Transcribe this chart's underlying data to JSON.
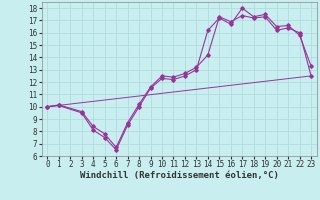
{
  "bg_color": "#c8eef0",
  "grid_color": "#b0dde0",
  "line_color": "#993399",
  "xlim": [
    -0.5,
    23.5
  ],
  "ylim": [
    6,
    18.5
  ],
  "xticks": [
    0,
    1,
    2,
    3,
    4,
    5,
    6,
    7,
    8,
    9,
    10,
    11,
    12,
    13,
    14,
    15,
    16,
    17,
    18,
    19,
    20,
    21,
    22,
    23
  ],
  "yticks": [
    6,
    7,
    8,
    9,
    10,
    11,
    12,
    13,
    14,
    15,
    16,
    17,
    18
  ],
  "xlabel": "Windchill (Refroidissement éolien,°C)",
  "line1_x": [
    0,
    1,
    3,
    4,
    5,
    6,
    7,
    8,
    9,
    10,
    11,
    12,
    13,
    14,
    15,
    16,
    17,
    18,
    19,
    20,
    21,
    22,
    23
  ],
  "line1_y": [
    10,
    10.1,
    9.5,
    8.1,
    7.5,
    6.5,
    8.5,
    10.0,
    11.5,
    12.3,
    12.2,
    12.5,
    13.0,
    16.2,
    17.2,
    16.7,
    18.0,
    17.3,
    17.5,
    16.5,
    16.6,
    15.8,
    13.3
  ],
  "line2_x": [
    0,
    1,
    3,
    4,
    5,
    6,
    7,
    8,
    9,
    10,
    11,
    12,
    13,
    14,
    15,
    16,
    17,
    18,
    19,
    20,
    21,
    22,
    23
  ],
  "line2_y": [
    10,
    10.15,
    9.6,
    8.4,
    7.8,
    6.7,
    8.7,
    10.2,
    11.6,
    12.5,
    12.4,
    12.7,
    13.2,
    14.2,
    17.3,
    16.9,
    17.4,
    17.2,
    17.3,
    16.2,
    16.4,
    16.0,
    12.5
  ],
  "line3_x": [
    0,
    23
  ],
  "line3_y": [
    10,
    12.5
  ],
  "tick_fontsize": 5.5,
  "xlabel_fontsize": 6.5
}
